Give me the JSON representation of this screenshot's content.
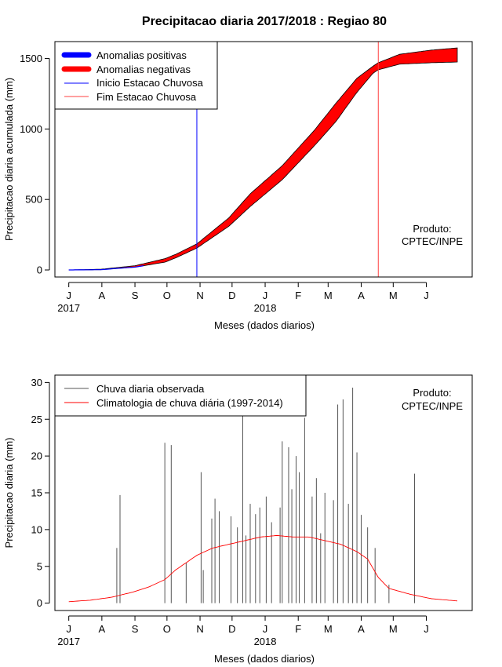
{
  "title": "Precipitacao diaria 2017/2018 : Regiao 80",
  "colors": {
    "positive": "#0000ff",
    "negative": "#ff0000",
    "start_line": "#0000ff",
    "end_line": "#ff4040",
    "observed": "#555555",
    "climatology": "#ff0000",
    "axis": "#000000"
  },
  "chart_data": [
    {
      "type": "area",
      "id": "accumulated",
      "ylabel": "Precipitacao diaria acumulada (mm)",
      "xlabel": "Meses (dados diarios)",
      "x_ticks": [
        "J",
        "A",
        "S",
        "O",
        "N",
        "D",
        "J",
        "F",
        "M",
        "A",
        "M",
        "J"
      ],
      "x_tick_days": [
        0,
        31,
        62,
        92,
        123,
        153,
        184,
        215,
        243,
        274,
        304,
        335
      ],
      "year_labels": [
        {
          "text": "2017",
          "day": 0
        },
        {
          "text": "2018",
          "day": 184
        }
      ],
      "yticks": [
        0,
        500,
        1000,
        1500
      ],
      "ylim": [
        -50,
        1620
      ],
      "xlim": [
        -13,
        378
      ],
      "legend": {
        "position": "top-left",
        "entries": [
          "Anomalias positivas",
          "Anomalias negativas",
          "Inicio Estacao Chuvosa",
          "Fim Estacao Chuvosa"
        ]
      },
      "product_label": [
        "Produto:",
        "CPTEC/INPE"
      ],
      "rainy_season_start_day": 120,
      "rainy_season_end_day": 290,
      "observed_cumulative": {
        "days": [
          0,
          30,
          62,
          90,
          100,
          120,
          150,
          170,
          200,
          230,
          250,
          270,
          285,
          290,
          310,
          340,
          364
        ],
        "values": [
          0,
          2,
          20,
          55,
          85,
          155,
          310,
          450,
          640,
          880,
          1050,
          1260,
          1395,
          1420,
          1460,
          1470,
          1475
        ]
      },
      "climatology_cumulative": {
        "days": [
          0,
          30,
          62,
          90,
          100,
          120,
          150,
          170,
          200,
          230,
          250,
          270,
          285,
          290,
          310,
          340,
          364
        ],
        "values": [
          0,
          5,
          30,
          80,
          110,
          185,
          370,
          540,
          740,
          990,
          1180,
          1360,
          1445,
          1470,
          1530,
          1560,
          1575
        ]
      }
    },
    {
      "type": "bar",
      "id": "daily",
      "ylabel": "Precipitacao diaria (mm)",
      "xlabel": "Meses (dados diarios)",
      "x_ticks": [
        "J",
        "A",
        "S",
        "O",
        "N",
        "D",
        "J",
        "F",
        "M",
        "A",
        "M",
        "J"
      ],
      "x_tick_days": [
        0,
        31,
        62,
        92,
        123,
        153,
        184,
        215,
        243,
        274,
        304,
        335
      ],
      "year_labels": [
        {
          "text": "2017",
          "day": 0
        },
        {
          "text": "2018",
          "day": 184
        }
      ],
      "yticks": [
        0,
        5,
        10,
        15,
        20,
        25,
        30
      ],
      "ylim": [
        -1,
        31
      ],
      "xlim": [
        -13,
        378
      ],
      "legend": {
        "position": "top-left",
        "entries": [
          "Chuva diaria observada",
          "Climatologia de chuva diária (1997-2014)"
        ]
      },
      "product_label": [
        "Produto:",
        "CPTEC/INPE"
      ],
      "observed_rain": {
        "days": [
          45,
          48,
          90,
          96,
          110,
          124,
          126,
          134,
          137,
          141,
          152,
          158,
          163,
          166,
          170,
          175,
          179,
          185,
          190,
          198,
          200,
          206,
          209,
          213,
          216,
          221,
          228,
          232,
          236,
          240,
          248,
          252,
          257,
          262,
          266,
          270,
          274,
          280,
          287,
          300,
          324
        ],
        "values": [
          7.5,
          14.7,
          21.8,
          21.5,
          5.5,
          17.8,
          4.5,
          11.5,
          14.2,
          12.5,
          11.8,
          10.3,
          25.5,
          9.2,
          13.5,
          12.1,
          13.0,
          14.5,
          11.0,
          13.0,
          22.0,
          21.2,
          15.5,
          20.0,
          17.8,
          25.2,
          14.5,
          17.0,
          9.5,
          15.0,
          14.0,
          27.0,
          27.7,
          13.5,
          29.3,
          20.5,
          12.0,
          10.3,
          7.5,
          2.5,
          17.6
        ]
      },
      "climatology_daily": {
        "days": [
          0,
          20,
          40,
          60,
          75,
          90,
          100,
          110,
          120,
          135,
          150,
          165,
          180,
          195,
          210,
          225,
          240,
          255,
          270,
          280,
          290,
          300,
          320,
          340,
          364
        ],
        "values": [
          0.2,
          0.4,
          0.8,
          1.5,
          2.2,
          3.2,
          4.5,
          5.5,
          6.5,
          7.5,
          8.0,
          8.5,
          9.0,
          9.2,
          9.0,
          9.0,
          8.5,
          8.0,
          7.0,
          6.0,
          3.5,
          2.0,
          1.2,
          0.6,
          0.3
        ]
      }
    }
  ]
}
